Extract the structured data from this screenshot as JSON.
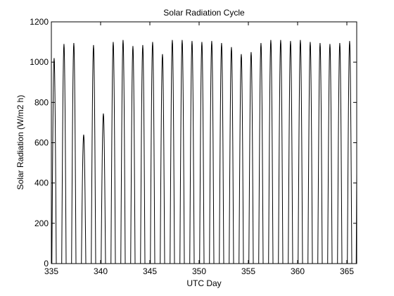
{
  "chart_data": {
    "type": "line",
    "title": "Solar Radiation Cycle",
    "xlabel": "UTC Day",
    "ylabel": "Solar Radiation (W/m2 h)",
    "xlim": [
      335,
      366
    ],
    "ylim": [
      0,
      1200
    ],
    "xticks": [
      335,
      340,
      345,
      350,
      355,
      360,
      365
    ],
    "yticks": [
      0,
      200,
      400,
      600,
      800,
      1000,
      1200
    ],
    "grid": false,
    "line_color": "#000000",
    "series": [
      {
        "name": "",
        "daily_peaks": {
          "day": [
            335,
            336,
            337,
            338,
            339,
            340,
            341,
            342,
            343,
            344,
            345,
            346,
            347,
            348,
            349,
            350,
            351,
            352,
            353,
            354,
            355,
            356,
            357,
            358,
            359,
            360,
            361,
            362,
            363,
            364,
            365
          ],
          "peak": [
            1020,
            1090,
            1095,
            640,
            1085,
            745,
            1100,
            1110,
            1080,
            1085,
            1100,
            1040,
            1110,
            1110,
            1105,
            1100,
            1105,
            1095,
            1075,
            1040,
            1050,
            1095,
            1110,
            1110,
            1105,
            1110,
            1100,
            1095,
            1090,
            1095,
            1105
          ]
        }
      }
    ]
  }
}
